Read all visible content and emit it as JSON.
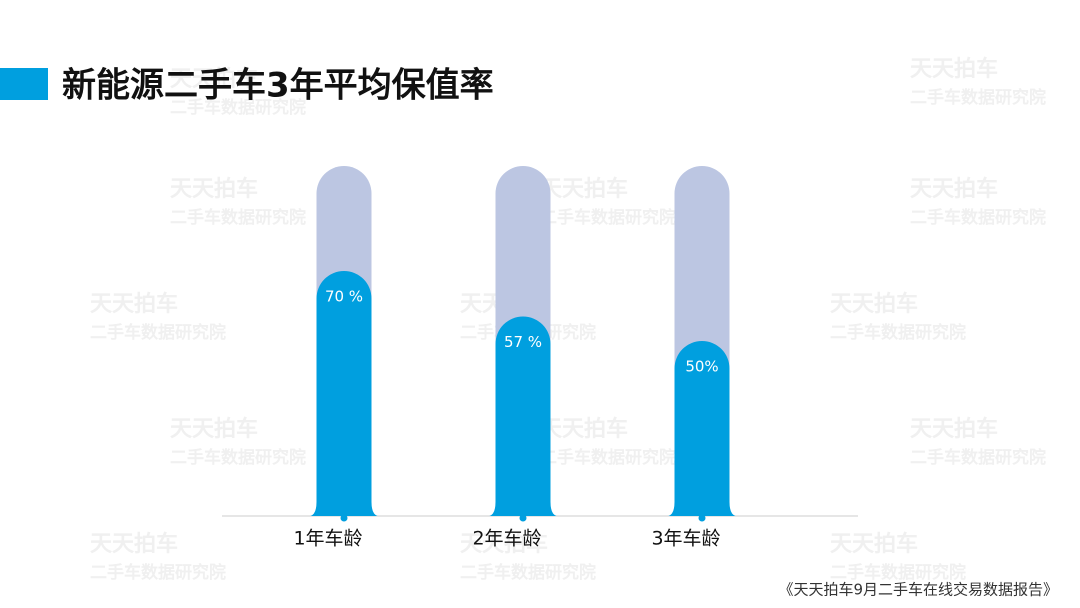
{
  "chart_data": {
    "type": "bar",
    "title": "新能源二手车3年平均保值率",
    "categories": [
      "1年车龄",
      "2年车龄",
      "3年车龄"
    ],
    "values": [
      70,
      57,
      50
    ],
    "value_labels": [
      "70 %",
      "57 %",
      "50%"
    ],
    "color": "#009fdf",
    "track_color": "#bcc6e2",
    "ylim": [
      0,
      100
    ],
    "watermark": [
      "天天拍车",
      "二手车数据研究院"
    ],
    "source": "《天天拍车9月二手车在线交易数据报告》"
  }
}
